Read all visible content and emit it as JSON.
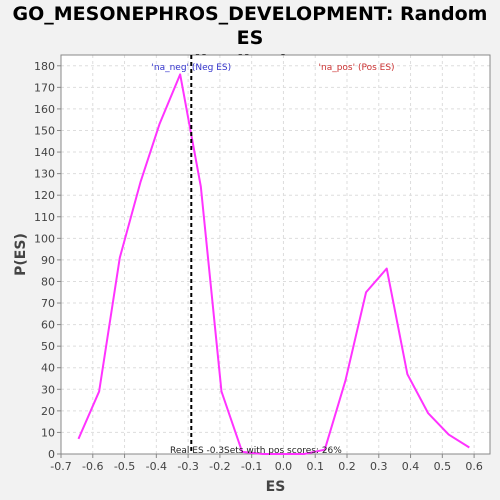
{
  "chart_data": {
    "type": "line",
    "title_line1": "GO_MESONEPHROS_DEVELOPMENT: Random ES",
    "title_line2": "distribution",
    "xlabel": "ES",
    "ylabel": "P(ES)",
    "xlim": [
      -0.7,
      0.65
    ],
    "ylim": [
      0,
      185
    ],
    "xticks": [
      -0.7,
      -0.6,
      -0.5,
      -0.4,
      -0.3,
      -0.2,
      -0.1,
      0.0,
      0.1,
      0.2,
      0.3,
      0.4,
      0.5,
      0.6
    ],
    "xtick_labels": [
      "-0.7",
      "-0.6",
      "-0.5",
      "-0.4",
      "-0.3",
      "-0.2",
      "-0.1",
      "0.0",
      "0.1",
      "0.2",
      "0.3",
      "0.4",
      "0.5",
      "0.6"
    ],
    "yticks": [
      0,
      10,
      20,
      30,
      40,
      50,
      60,
      70,
      80,
      90,
      100,
      110,
      120,
      130,
      140,
      150,
      160,
      170,
      180
    ],
    "ytick_labels": [
      "0",
      "10",
      "20",
      "30",
      "40",
      "50",
      "60",
      "70",
      "80",
      "90",
      "100",
      "110",
      "120",
      "130",
      "140",
      "150",
      "160",
      "170",
      "180"
    ],
    "grid": true,
    "series": [
      {
        "color": "#ff33ff",
        "x": [
          -0.645,
          -0.58,
          -0.515,
          -0.45,
          -0.39,
          -0.325,
          -0.26,
          -0.195,
          -0.13,
          -0.065,
          0.0,
          0.065,
          0.13,
          0.195,
          0.26,
          0.325,
          0.39,
          0.455,
          0.52,
          0.585
        ],
        "y": [
          7,
          29,
          91,
          126,
          153,
          176,
          124,
          29,
          1,
          0,
          0,
          0,
          2,
          34,
          75,
          86,
          37,
          19,
          9,
          3
        ]
      }
    ],
    "real_es": -0.29,
    "real_es_line_color": "#000000",
    "annotations": {
      "neg_label": "'na_neg' (Neg ES)",
      "neg_color": "#3333cc",
      "pos_label": "'na_pos' (Pos ES)",
      "pos_color": "#cc3333",
      "real_es_text": "Real ES -0.3",
      "pos_scores_text": "Sets with pos scores: 26%"
    }
  },
  "colors": {
    "background": "#f2f2f2",
    "plot_background": "#ffffff",
    "grid": "#dddddd",
    "axis": "#888888"
  }
}
